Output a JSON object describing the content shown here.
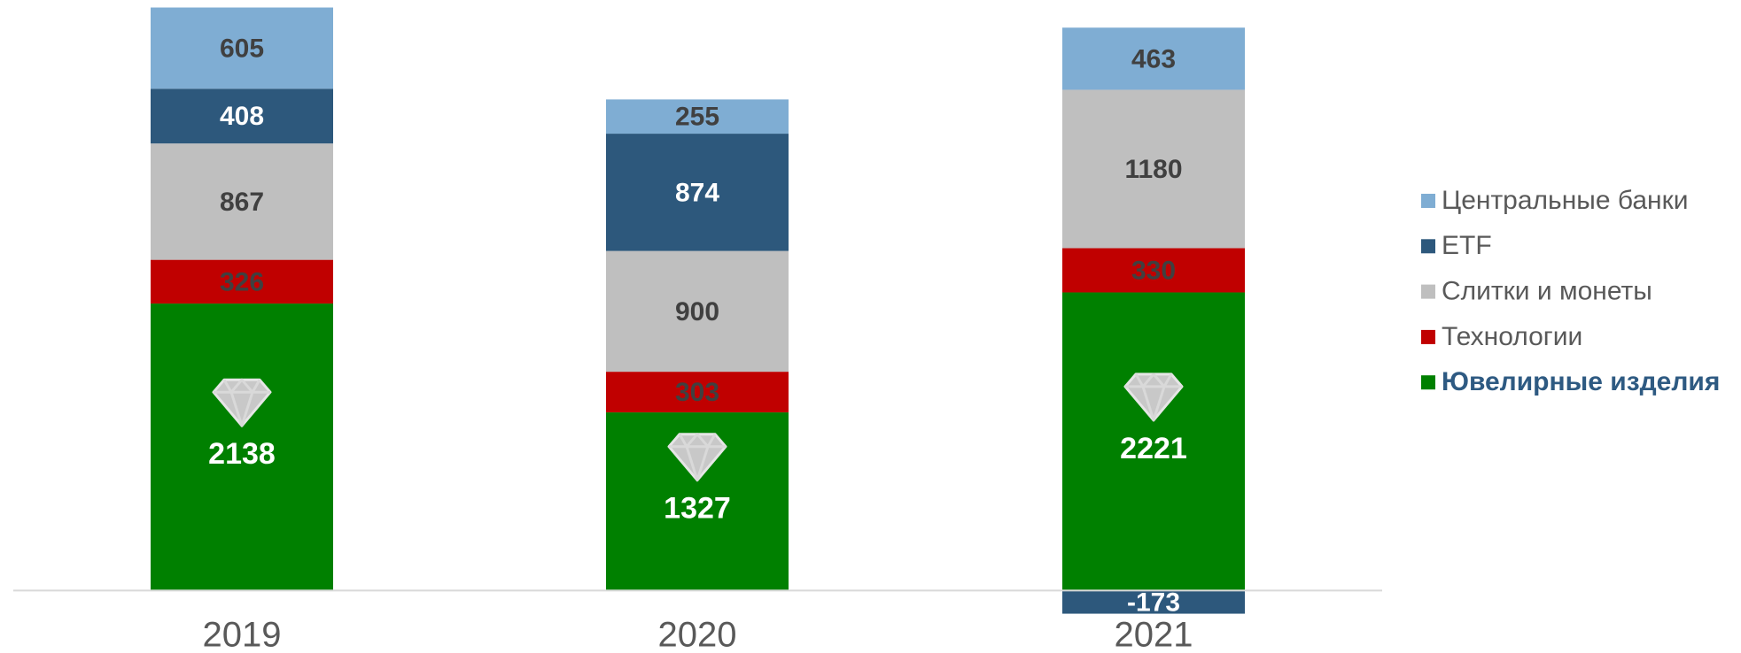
{
  "chart_data": {
    "type": "stacked_bar",
    "categories": [
      "2019",
      "2020",
      "2021"
    ],
    "series": [
      {
        "name": "Ювелирные изделия",
        "color": "#008000",
        "values": [
          2138,
          1327,
          2221
        ]
      },
      {
        "name": "Технологии",
        "color": "#c00000",
        "values": [
          326,
          303,
          330
        ]
      },
      {
        "name": "Слитки и монеты",
        "color": "#bfbfbf",
        "values": [
          867,
          900,
          1180
        ]
      },
      {
        "name": "ETF",
        "color": "#2d587c",
        "values": [
          408,
          874,
          -173
        ]
      },
      {
        "name": "Центральные банки",
        "color": "#7fadd3",
        "values": [
          605,
          255,
          463
        ]
      }
    ],
    "ylim": [
      -400,
      4400
    ],
    "legend": "right"
  }
}
